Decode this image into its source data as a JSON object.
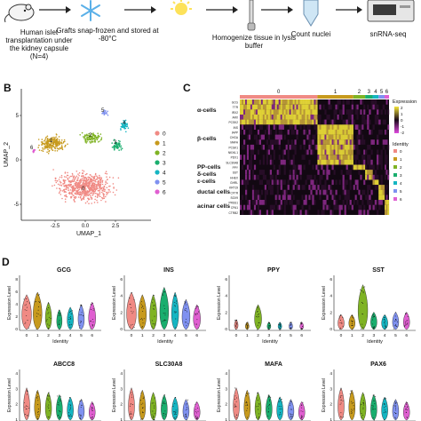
{
  "panelA": {
    "steps": [
      {
        "label": "Human islet transplantation under the kidney capsule (N=4)",
        "icon": "mouse-icon"
      },
      {
        "label": "Grafts snap-frozen and stored at -80°C",
        "icon": "snowflake-icon"
      },
      {
        "label": "Homogenize tissue in lysis buffer",
        "icon": "homogenizer-icon"
      },
      {
        "label": "Count nuclei",
        "icon": "tube-icon"
      },
      {
        "label": "snRNA-seq",
        "icon": "sequencer-icon"
      }
    ]
  },
  "panelB": {
    "letter": "B",
    "xlabel": "UMAP_1",
    "ylabel": "UMAP_2",
    "xticks": [
      "-2.5",
      "0.0",
      "2.5"
    ],
    "yticks": [
      "5",
      "0",
      "-5"
    ],
    "cluster_labels": [
      "0",
      "1",
      "2",
      "3",
      "4",
      "5",
      "6"
    ],
    "legend": [
      "0",
      "1",
      "2",
      "3",
      "4",
      "5",
      "6"
    ],
    "colors": [
      "#f08a84",
      "#c79a1d",
      "#7fb324",
      "#1aae6e",
      "#15b5c2",
      "#7f91f0",
      "#e05fd1"
    ]
  },
  "panelC": {
    "letter": "C",
    "cell_types": [
      "α-cells",
      "β-cells",
      "PP-cells",
      "δ-cells",
      "ε-cells",
      "ductal cells",
      "acinar cells"
    ],
    "column_labels": [
      "0",
      "1",
      "2",
      "3",
      "4",
      "5",
      "6"
    ],
    "genes": [
      "GCG",
      "TTR",
      "IRX2",
      "ARX",
      "PCSK2",
      "INS",
      "IAPP",
      "CHGA",
      "MAFA",
      "PCSK1",
      "NKX6-1",
      "PDX1",
      "SLC30A8",
      "PPY",
      "SST",
      "HHEX",
      "GHRL",
      "KRT19",
      "CFTR",
      "SOX9",
      "PRSS1",
      "CPA1",
      "CTRB2"
    ],
    "expression_title": "Expression",
    "expression_ticks": [
      "2",
      "1",
      "0",
      "-1",
      "-2"
    ],
    "identity_title": "Identity",
    "identity_items": [
      "0",
      "1",
      "2",
      "3",
      "4",
      "5",
      "6"
    ]
  },
  "panelD": {
    "letter": "D",
    "ylabel": "Expression Level",
    "xlabel": "Identity",
    "identity_ticks": [
      "0",
      "1",
      "2",
      "3",
      "4",
      "5",
      "6"
    ],
    "row1": [
      {
        "gene": "GCG",
        "yticks": [
          "8",
          "6",
          "4",
          "2",
          "0"
        ],
        "levels": [
          0.7,
          0.75,
          0.55,
          0.4,
          0.45,
          0.5,
          0.55
        ],
        "widths": [
          0.9,
          0.8,
          0.5,
          0.4,
          0.5,
          0.5,
          0.6
        ]
      },
      {
        "gene": "INS",
        "yticks": [
          "6",
          "4",
          "2",
          "0"
        ],
        "levels": [
          0.75,
          0.7,
          0.7,
          0.85,
          0.75,
          0.6,
          0.5
        ],
        "widths": [
          0.9,
          0.7,
          0.6,
          0.8,
          0.6,
          0.7,
          0.6
        ]
      },
      {
        "gene": "PPY",
        "yticks": [
          "6",
          "4",
          "2",
          "0"
        ],
        "levels": [
          0.2,
          0.15,
          0.5,
          0.15,
          0.15,
          0.15,
          0.15
        ],
        "widths": [
          0.2,
          0.2,
          0.6,
          0.2,
          0.2,
          0.2,
          0.2
        ]
      },
      {
        "gene": "SST",
        "yticks": [
          "6",
          "4",
          "2",
          "0"
        ],
        "levels": [
          0.3,
          0.3,
          0.9,
          0.35,
          0.3,
          0.35,
          0.35
        ],
        "widths": [
          0.5,
          0.5,
          0.9,
          0.5,
          0.5,
          0.5,
          0.5
        ]
      }
    ],
    "row2": [
      {
        "gene": "ABCC8",
        "yticks": [
          "4",
          "3",
          "2",
          "1"
        ]
      },
      {
        "gene": "SLC30A8",
        "yticks": [
          "4",
          "3",
          "2",
          "1"
        ]
      },
      {
        "gene": "MAFA",
        "yticks": [
          "4",
          "3",
          "2",
          "1"
        ]
      },
      {
        "gene": "PAX6",
        "yticks": [
          "4",
          "3",
          "2",
          "1"
        ]
      }
    ]
  }
}
